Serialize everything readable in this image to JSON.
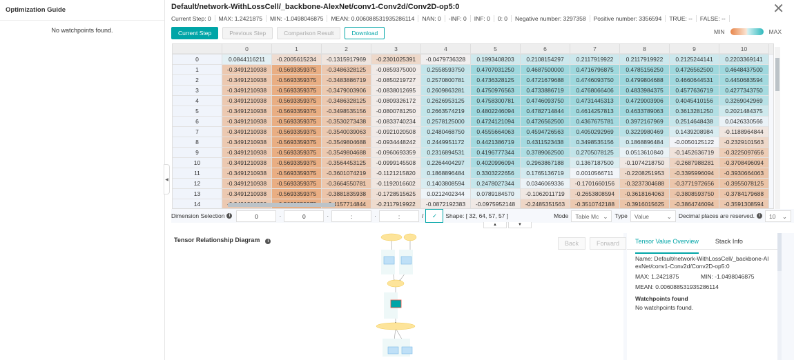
{
  "sidebar": {
    "title": "Optimization Guide",
    "empty": "No watchpoints found."
  },
  "header": {
    "title": "Default/network-WithLossCell/_backbone-AlexNet/conv1-Conv2d/Conv2D-op5:0"
  },
  "stats": [
    "Current Step:   0",
    "MAX: 1.2421875",
    "MIN: -1.0498046875",
    "MEAN: 0.006088531935286114",
    "NAN: 0",
    "-INF: 0",
    "INF: 0",
    "0: 0",
    "Negative number: 3297358",
    "Positive number: 3356594",
    "TRUE: --",
    "FALSE: --"
  ],
  "buttons": {
    "current_step": "Current Step",
    "previous_step": "Previous Step",
    "comparison": "Comparison Result",
    "download": "Download"
  },
  "legend": {
    "min": "MIN",
    "max": "MAX",
    "colors": {
      "min": "#e8864a",
      "max": "#2fb9bd"
    }
  },
  "table": {
    "columns": [
      "0",
      "1",
      "2",
      "3",
      "4",
      "5",
      "6",
      "7",
      "8",
      "9",
      "10"
    ],
    "rows": [
      [
        "0",
        "0.0844116211",
        "-0.2005615234",
        "-0.1315917969",
        "-0.2301025391",
        "-0.0479736328",
        "0.1993408203",
        "0.2108154297",
        "0.2117919922",
        "0.2117919922",
        "0.2125244141",
        "0.2203369141"
      ],
      [
        "1",
        "-0.3491210938",
        "-0.5693359375",
        "-0.3486328125",
        "-0.0859375000",
        "0.2558593750",
        "0.4707031250",
        "0.4687500000",
        "0.4716796875",
        "0.4785156250",
        "0.4726562500",
        "0.4648437500"
      ],
      [
        "2",
        "-0.3491210938",
        "-0.5693359375",
        "-0.3483886719",
        "-0.0850219727",
        "0.2570800781",
        "0.4736328125",
        "0.4721679688",
        "0.4746093750",
        "0.4799804688",
        "0.4660644531",
        "0.4450683594"
      ],
      [
        "3",
        "-0.3491210938",
        "-0.5693359375",
        "-0.3479003906",
        "-0.0838012695",
        "0.2609863281",
        "0.4750976563",
        "0.4733886719",
        "0.4768066406",
        "0.4833984375",
        "0.4577636719",
        "0.4277343750"
      ],
      [
        "4",
        "-0.3491210938",
        "-0.5693359375",
        "-0.3486328125",
        "-0.0809326172",
        "0.2626953125",
        "0.4758300781",
        "0.4746093750",
        "0.4731445313",
        "0.4729003906",
        "0.4045410156",
        "0.3269042969"
      ],
      [
        "5",
        "-0.3491210938",
        "-0.5693359375",
        "-0.3498535156",
        "-0.0800781250",
        "0.2663574219",
        "0.4802246094",
        "0.4782714844",
        "0.4614257813",
        "0.4633789063",
        "0.3613281250",
        "0.2021484375"
      ],
      [
        "6",
        "-0.3491210938",
        "-0.5693359375",
        "-0.3530273438",
        "-0.0833740234",
        "0.2578125000",
        "0.4724121094",
        "0.4726562500",
        "0.4367675781",
        "0.3972167969",
        "0.2514648438",
        "0.0426330566"
      ],
      [
        "7",
        "-0.3491210938",
        "-0.5693359375",
        "-0.3540039063",
        "-0.0921020508",
        "0.2480468750",
        "0.4555664063",
        "0.4594726563",
        "0.4050292969",
        "0.3229980469",
        "0.1439208984",
        "-0.1188964844"
      ],
      [
        "8",
        "-0.3491210938",
        "-0.5693359375",
        "-0.3549804688",
        "-0.0934448242",
        "0.2449951172",
        "0.4421386719",
        "0.4311523438",
        "0.3498535156",
        "0.1868896484",
        "-0.0050125122",
        "-0.2329101563"
      ],
      [
        "9",
        "-0.3491210938",
        "-0.5693359375",
        "-0.3549804688",
        "-0.0960693359",
        "0.2316894531",
        "0.4196777344",
        "0.3789062500",
        "0.2705078125",
        "0.0513610840",
        "-0.1452636719",
        "-0.3225097656"
      ],
      [
        "10",
        "-0.3491210938",
        "-0.5693359375",
        "-0.3564453125",
        "-0.0999145508",
        "0.2264404297",
        "0.4020996094",
        "0.2963867188",
        "0.1367187500",
        "-0.1074218750",
        "-0.2687988281",
        "-0.3708496094"
      ],
      [
        "11",
        "-0.3491210938",
        "-0.5693359375",
        "-0.3601074219",
        "-0.1121215820",
        "0.1868896484",
        "0.3303222656",
        "0.1765136719",
        "0.0010566711",
        "-0.2208251953",
        "-0.3395996094",
        "-0.3930664063"
      ],
      [
        "12",
        "-0.3491210938",
        "-0.5693359375",
        "-0.3664550781",
        "-0.1192016602",
        "0.1403808594",
        "0.2478027344",
        "0.0346069336",
        "-0.1701660156",
        "-0.3237304688",
        "-0.3771972656",
        "-0.3955078125"
      ],
      [
        "13",
        "-0.3491210938",
        "-0.5693359375",
        "-0.3881835938",
        "-0.1728515625",
        "0.0212402344",
        "0.0789184570",
        "-0.1062011719",
        "-0.2653808594",
        "-0.3618164063",
        "-0.3808593750",
        "-0.3784179688"
      ],
      [
        "14",
        "-0.3491210938",
        "-0.5693359375",
        "-0.4157714844",
        "-0.2117919922",
        "-0.0872192383",
        "-0.0975952148",
        "-0.2485351563",
        "-0.3510742188",
        "-0.3916015625",
        "-0.3864746094",
        "-0.3591308594"
      ]
    ]
  },
  "dimension": {
    "label": "Dimension Selection",
    "values": [
      "0",
      "0",
      ":",
      ":"
    ],
    "separator": "/",
    "confirm": "✓",
    "shape": "Shape: [ 32, 64, 57, 57 ]",
    "mode_label": "Mode",
    "mode_value": "Table Mc",
    "type_label": "Type",
    "type_value": "Value",
    "decimal_label": "Decimal places are reserved.",
    "decimal_value": "10"
  },
  "graph": {
    "title": "Tensor Relationship Diagram",
    "back": "Back",
    "forward": "Forward"
  },
  "panel": {
    "tabs": [
      "Tensor Value Overview",
      "Stack Info"
    ],
    "name": "Name: Default/network-WithLossCell/_backbone-AlexNet/conv1-Conv2d/Conv2D-op5:0",
    "max": "MAX: 1.2421875",
    "min": "MIN: -1.0498046875",
    "mean": "MEAN: 0.006088531935286114",
    "watch_title": "Watchpoints found",
    "watch_empty": "No watchpoints found."
  }
}
